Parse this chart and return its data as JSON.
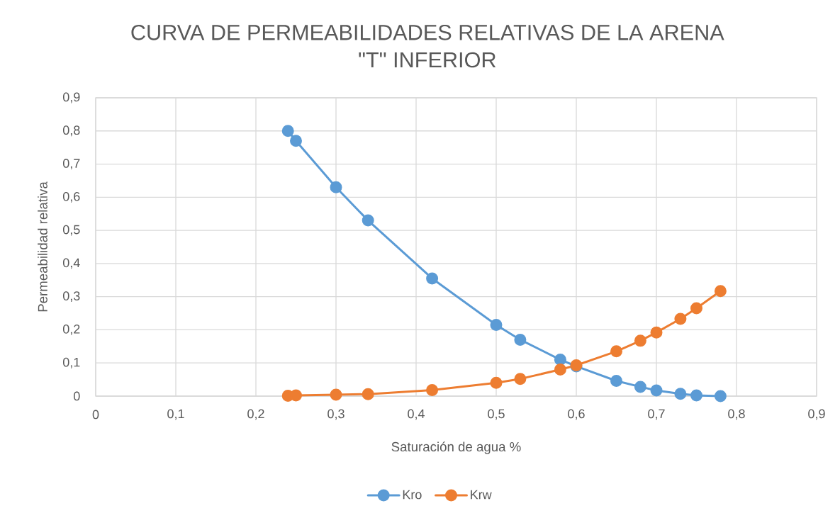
{
  "chart_data": {
    "type": "line",
    "title": "CURVA DE PERMEABILIDADES RELATIVAS DE LA ARENA \"T\" INFERIOR",
    "xlabel": "Saturación de agua %",
    "ylabel": "Permeabilidad relativa",
    "x": [
      0.24,
      0.25,
      0.3,
      0.34,
      0.42,
      0.5,
      0.53,
      0.58,
      0.6,
      0.65,
      0.68,
      0.7,
      0.73,
      0.75,
      0.78
    ],
    "series": [
      {
        "name": "Kro",
        "color": "#5b9bd5",
        "values": [
          0.8,
          0.77,
          0.63,
          0.53,
          0.355,
          0.215,
          0.17,
          0.11,
          0.09,
          0.046,
          0.028,
          0.017,
          0.007,
          0.002,
          0
        ]
      },
      {
        "name": "Krw",
        "color": "#ed7d31",
        "values": [
          0.001,
          0.002,
          0.004,
          0.006,
          0.018,
          0.04,
          0.052,
          0.08,
          0.093,
          0.135,
          0.167,
          0.192,
          0.233,
          0.265,
          0.317
        ]
      }
    ],
    "xlim": [
      0,
      0.9
    ],
    "ylim": [
      0,
      0.9
    ],
    "xticks": [
      0,
      {
        "value": 0.1,
        "label": "0,1"
      },
      {
        "value": 0.2,
        "label": "0,2"
      },
      {
        "value": 0.3,
        "label": "0,3"
      },
      {
        "value": 0.4,
        "label": "0,4"
      },
      {
        "value": 0.5,
        "label": "0,5"
      },
      {
        "value": 0.6,
        "label": "0,6"
      },
      {
        "value": 0.7,
        "label": "0,7"
      },
      {
        "value": 0.8,
        "label": "0,8"
      },
      {
        "value": 0.9,
        "label": "0,9"
      }
    ],
    "yticks": [
      0,
      {
        "value": 0.1,
        "label": "0,1"
      },
      {
        "value": 0.2,
        "label": "0,2"
      },
      {
        "value": 0.3,
        "label": "0,3"
      },
      {
        "value": 0.4,
        "label": "0,4"
      },
      {
        "value": 0.5,
        "label": "0,5"
      },
      {
        "value": 0.6,
        "label": "0,6"
      },
      {
        "value": 0.7,
        "label": "0,7"
      },
      {
        "value": 0.8,
        "label": "0,8"
      },
      {
        "value": 0.9,
        "label": "0,9"
      }
    ],
    "grid": true,
    "legend": "bottom",
    "marker": "circle",
    "line_style": "solid"
  }
}
